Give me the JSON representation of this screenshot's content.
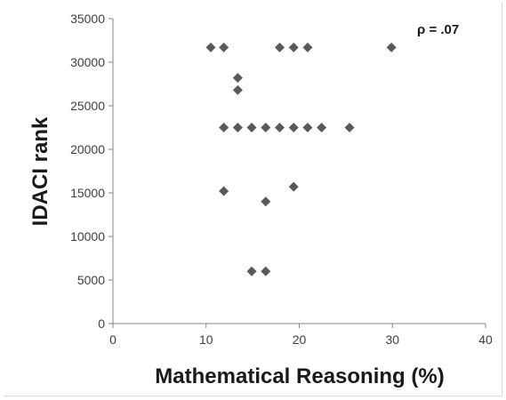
{
  "chart_data": {
    "type": "scatter",
    "title": "",
    "xlabel": "Mathematical Reasoning (%)",
    "ylabel": "IDACI rank",
    "xlim": [
      0,
      40
    ],
    "ylim": [
      0,
      35000
    ],
    "x_ticks": [
      "0",
      "10",
      "20",
      "30",
      "40"
    ],
    "y_ticks": [
      "0",
      "5000",
      "10000",
      "15000",
      "20000",
      "25000",
      "30000",
      "35000"
    ],
    "grid": false,
    "legend": "none",
    "marker": "diamond",
    "marker_color": "#595959",
    "annotation": "ρ = .07",
    "points": [
      {
        "x": 10.5,
        "y": 31700
      },
      {
        "x": 11.9,
        "y": 31700
      },
      {
        "x": 17.9,
        "y": 31700
      },
      {
        "x": 19.4,
        "y": 31700
      },
      {
        "x": 20.9,
        "y": 31700
      },
      {
        "x": 29.9,
        "y": 31700
      },
      {
        "x": 13.4,
        "y": 28200
      },
      {
        "x": 13.4,
        "y": 26800
      },
      {
        "x": 11.9,
        "y": 22500
      },
      {
        "x": 13.4,
        "y": 22500
      },
      {
        "x": 14.9,
        "y": 22500
      },
      {
        "x": 16.4,
        "y": 22500
      },
      {
        "x": 17.9,
        "y": 22500
      },
      {
        "x": 19.4,
        "y": 22500
      },
      {
        "x": 20.9,
        "y": 22500
      },
      {
        "x": 22.4,
        "y": 22500
      },
      {
        "x": 25.4,
        "y": 22500
      },
      {
        "x": 11.9,
        "y": 15200
      },
      {
        "x": 19.4,
        "y": 15700
      },
      {
        "x": 16.4,
        "y": 14000
      },
      {
        "x": 14.9,
        "y": 6000
      },
      {
        "x": 16.4,
        "y": 6000
      }
    ]
  }
}
